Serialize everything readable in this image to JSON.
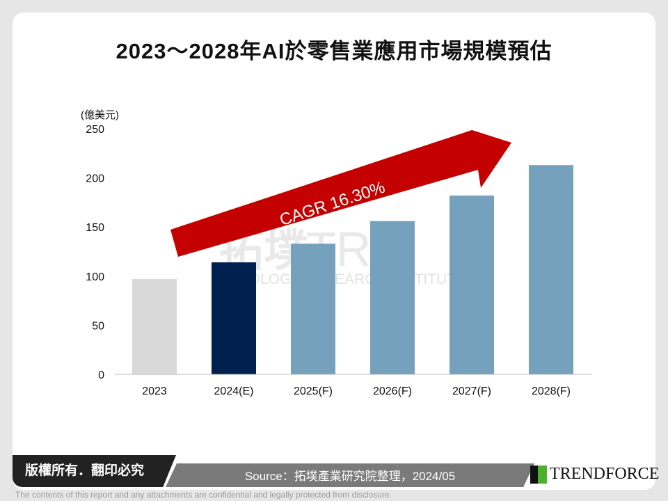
{
  "title": "2023～2028年AI於零售業應用市場規模預估",
  "chart_data": {
    "type": "bar",
    "title": "2023～2028年AI於零售業應用市場規模預估",
    "ylabel": "(億美元)",
    "categories": [
      "2023",
      "2024(E)",
      "2025(F)",
      "2026(F)",
      "2027(F)",
      "2028(F)"
    ],
    "values": [
      97,
      114,
      133,
      156,
      182,
      213
    ],
    "colors": [
      "#d9d9d9",
      "#002050",
      "#75a1bd",
      "#75a1bd",
      "#75a1bd",
      "#75a1bd"
    ],
    "ylim": [
      0,
      250
    ],
    "yticks": [
      "0",
      "50",
      "100",
      "150",
      "200",
      "250"
    ],
    "grid": false,
    "annotation": "CAGR 16.30%",
    "annotation_color": "#c00000"
  },
  "watermark": {
    "cn": "拓墣",
    "en": "TOPOLOGY RESEARCH INSTITUTE",
    "abbr": "TRI"
  },
  "footer": {
    "copyright": "版權所有．翻印必究",
    "source": "Source：拓墣產業研究院整理，2024/05",
    "logo": "TrendForce",
    "disclaimer": "The contents of this report and any attachments are confidential and legally protected from disclosure."
  }
}
